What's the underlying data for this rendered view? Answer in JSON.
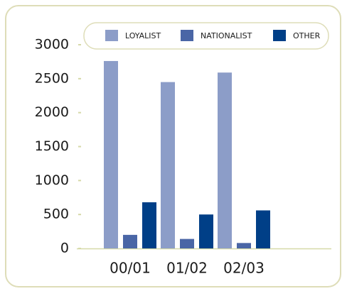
{
  "chart_data": {
    "type": "bar",
    "categories": [
      "00/01",
      "01/02",
      "02/03"
    ],
    "series": [
      {
        "name": "LOYALIST",
        "color": "#8c9dc8",
        "values": [
          2760,
          2450,
          2590
        ]
      },
      {
        "name": "NATIONALIST",
        "color": "#4a66a6",
        "values": [
          200,
          140,
          80
        ]
      },
      {
        "name": "OTHER",
        "color": "#003f87",
        "values": [
          680,
          500,
          560
        ]
      }
    ],
    "ylim": [
      0,
      3000
    ],
    "yticks": [
      0,
      500,
      1000,
      1500,
      2000,
      2500,
      3000
    ],
    "legend": "top"
  }
}
